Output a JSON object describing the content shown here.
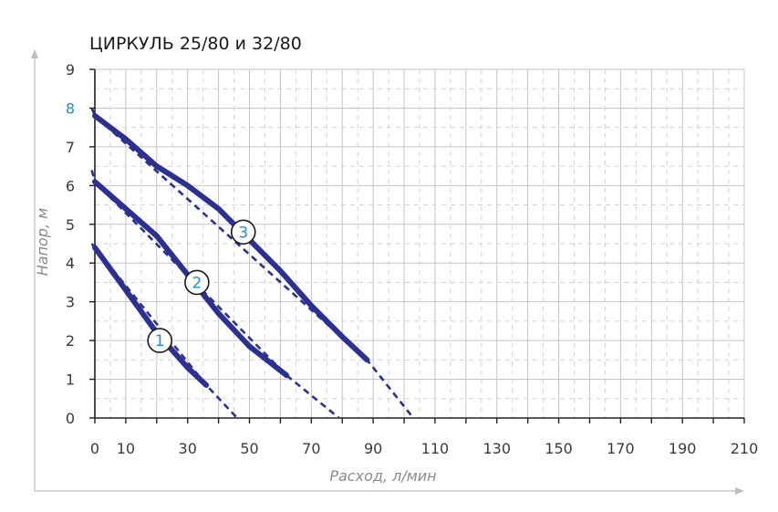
{
  "chart_data": {
    "type": "line",
    "title": "ЦИРКУЛЬ 25/80 и 32/80",
    "xlabel": "Расход, л/мин",
    "ylabel": "Напор, м",
    "xlim": [
      0,
      210
    ],
    "ylim": [
      0,
      9
    ],
    "x_ticks": [
      "0",
      "10",
      "30",
      "50",
      "70",
      "90",
      "110",
      "130",
      "150",
      "170",
      "190",
      "210"
    ],
    "x_tick_values": [
      0,
      10,
      30,
      50,
      70,
      90,
      110,
      130,
      150,
      170,
      190,
      210
    ],
    "y_ticks": [
      "0",
      "1",
      "2",
      "3",
      "4",
      "5",
      "6",
      "7",
      "8",
      "9"
    ],
    "y_tick_values": [
      0,
      1,
      2,
      3,
      4,
      5,
      6,
      7,
      8,
      9
    ],
    "highlighted_y_tick": "8",
    "grid": true,
    "line_color": "#2a3191",
    "marker_color": "#1c8fd0",
    "series": [
      {
        "marker_label": "1",
        "marker_at": [
          21,
          2.0
        ],
        "solid": [
          [
            0,
            4.4
          ],
          [
            10,
            3.3
          ],
          [
            20,
            2.2
          ],
          [
            30,
            1.3
          ],
          [
            36,
            0.85
          ]
        ],
        "dashed": [
          [
            -1,
            4.5
          ],
          [
            0,
            4.4
          ],
          [
            36,
            0.85
          ],
          [
            46,
            0
          ]
        ]
      },
      {
        "marker_label": "2",
        "marker_at": [
          33,
          3.5
        ],
        "solid": [
          [
            0,
            6.1
          ],
          [
            10,
            5.4
          ],
          [
            20,
            4.7
          ],
          [
            30,
            3.7
          ],
          [
            40,
            2.7
          ],
          [
            50,
            1.85
          ],
          [
            62,
            1.1
          ]
        ],
        "dashed": [
          [
            -1,
            6.4
          ],
          [
            0,
            6.1
          ],
          [
            62,
            1.1
          ],
          [
            79,
            0
          ]
        ]
      },
      {
        "marker_label": "3",
        "marker_at": [
          48,
          4.8
        ],
        "solid": [
          [
            0,
            7.8
          ],
          [
            10,
            7.2
          ],
          [
            20,
            6.5
          ],
          [
            30,
            6.0
          ],
          [
            40,
            5.4
          ],
          [
            50,
            4.6
          ],
          [
            60,
            3.8
          ],
          [
            70,
            2.9
          ],
          [
            80,
            2.1
          ],
          [
            88,
            1.5
          ]
        ],
        "dashed": [
          [
            -1,
            8.0
          ],
          [
            0,
            7.8
          ],
          [
            88,
            1.5
          ],
          [
            103,
            0
          ]
        ]
      }
    ]
  }
}
